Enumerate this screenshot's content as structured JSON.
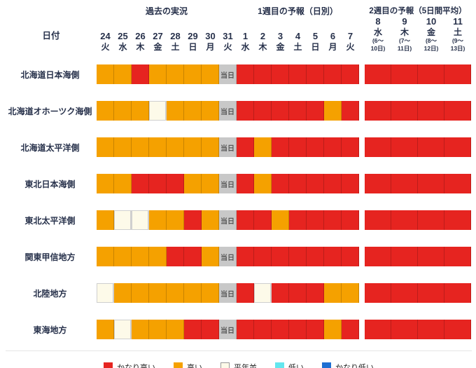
{
  "header": {
    "past_label": "過去の実況",
    "week1_label": "1週目の予報（日別）",
    "week2_label": "2週目の予報（5日間平均）",
    "date_label": "日付"
  },
  "columns": {
    "days": [
      {
        "num": "24",
        "dow": "火"
      },
      {
        "num": "25",
        "dow": "水"
      },
      {
        "num": "26",
        "dow": "木"
      },
      {
        "num": "27",
        "dow": "金"
      },
      {
        "num": "28",
        "dow": "土"
      },
      {
        "num": "29",
        "dow": "日"
      },
      {
        "num": "30",
        "dow": "月"
      },
      {
        "num": "31",
        "dow": "火"
      },
      {
        "num": "1",
        "dow": "水"
      },
      {
        "num": "2",
        "dow": "木"
      },
      {
        "num": "3",
        "dow": "金"
      },
      {
        "num": "4",
        "dow": "土"
      },
      {
        "num": "5",
        "dow": "日"
      },
      {
        "num": "6",
        "dow": "月"
      },
      {
        "num": "7",
        "dow": "火"
      }
    ],
    "week2": [
      {
        "num": "8",
        "dow": "水",
        "range_top": "(6〜",
        "range_bottom": "10日)"
      },
      {
        "num": "9",
        "dow": "木",
        "range_top": "(7〜",
        "range_bottom": "11日)"
      },
      {
        "num": "10",
        "dow": "金",
        "range_top": "(8〜",
        "range_bottom": "12日)"
      },
      {
        "num": "11",
        "dow": "土",
        "range_top": "(9〜",
        "range_bottom": "13日)"
      }
    ]
  },
  "today_label": "当日",
  "colors": {
    "R": "#e62420",
    "O": "#f5a100",
    "C": "#fdfae9",
    "T": "#c8c8c8",
    "L": "#63e6ee",
    "LL": "#1e6fd2"
  },
  "chart_data": {
    "type": "heatmap",
    "sections": [
      "過去の実況",
      "1週目の予報（日別）",
      "2週目の予報（5日間平均）"
    ],
    "columns_days": [
      "24火",
      "25水",
      "26木",
      "27金",
      "28土",
      "29日",
      "30月",
      "31火(当日)",
      "1水",
      "2木",
      "3金",
      "4土",
      "5日",
      "6月",
      "7火"
    ],
    "columns_week2": [
      "8水(6〜10日)",
      "9木(7〜11日)",
      "10金(8〜12日)",
      "11土(9〜13日)"
    ],
    "category_legend": {
      "R": "かなり高い",
      "O": "高い",
      "C": "平年並",
      "L": "低い",
      "LL": "かなり低い",
      "T": "当日"
    },
    "rows": [
      {
        "label": "北海道日本海側",
        "days": [
          "O",
          "O",
          "R",
          "O",
          "O",
          "O",
          "O",
          "T",
          "R",
          "R",
          "R",
          "R",
          "R",
          "R",
          "R"
        ],
        "week2": [
          "R",
          "R",
          "R",
          "R"
        ]
      },
      {
        "label": "北海道オホーツク海側",
        "days": [
          "O",
          "O",
          "O",
          "C",
          "O",
          "O",
          "O",
          "T",
          "R",
          "R",
          "R",
          "R",
          "R",
          "O",
          "R"
        ],
        "week2": [
          "R",
          "R",
          "R",
          "R"
        ]
      },
      {
        "label": "北海道太平洋側",
        "days": [
          "O",
          "O",
          "O",
          "O",
          "O",
          "O",
          "O",
          "T",
          "R",
          "O",
          "R",
          "R",
          "R",
          "R",
          "R"
        ],
        "week2": [
          "R",
          "R",
          "R",
          "R"
        ]
      },
      {
        "label": "東北日本海側",
        "days": [
          "O",
          "O",
          "R",
          "R",
          "R",
          "O",
          "O",
          "T",
          "R",
          "O",
          "R",
          "R",
          "R",
          "R",
          "R"
        ],
        "week2": [
          "R",
          "R",
          "R",
          "R"
        ]
      },
      {
        "label": "東北太平洋側",
        "days": [
          "O",
          "C",
          "C",
          "O",
          "O",
          "R",
          "O",
          "T",
          "R",
          "R",
          "O",
          "R",
          "R",
          "R",
          "R"
        ],
        "week2": [
          "R",
          "R",
          "R",
          "R"
        ]
      },
      {
        "label": "関東甲信地方",
        "days": [
          "O",
          "O",
          "O",
          "O",
          "R",
          "R",
          "O",
          "T",
          "R",
          "R",
          "R",
          "R",
          "R",
          "R",
          "R"
        ],
        "week2": [
          "R",
          "R",
          "R",
          "R"
        ]
      },
      {
        "label": "北陸地方",
        "days": [
          "C",
          "O",
          "O",
          "O",
          "O",
          "O",
          "O",
          "T",
          "R",
          "C",
          "R",
          "R",
          "R",
          "O",
          "O"
        ],
        "week2": [
          "R",
          "R",
          "R",
          "R"
        ]
      },
      {
        "label": "東海地方",
        "days": [
          "O",
          "C",
          "O",
          "O",
          "O",
          "R",
          "R",
          "T",
          "R",
          "R",
          "R",
          "R",
          "R",
          "O",
          "R"
        ],
        "week2": [
          "R",
          "R",
          "R",
          "R"
        ]
      }
    ]
  },
  "legend": [
    {
      "label": "かなり高い",
      "color": "#e62420"
    },
    {
      "label": "高い",
      "color": "#f5a100"
    },
    {
      "label": "平年並",
      "color": "#fdfae9",
      "bordered": true
    },
    {
      "label": "低い",
      "color": "#63e6ee"
    },
    {
      "label": "かなり低い",
      "color": "#1e6fd2"
    }
  ]
}
